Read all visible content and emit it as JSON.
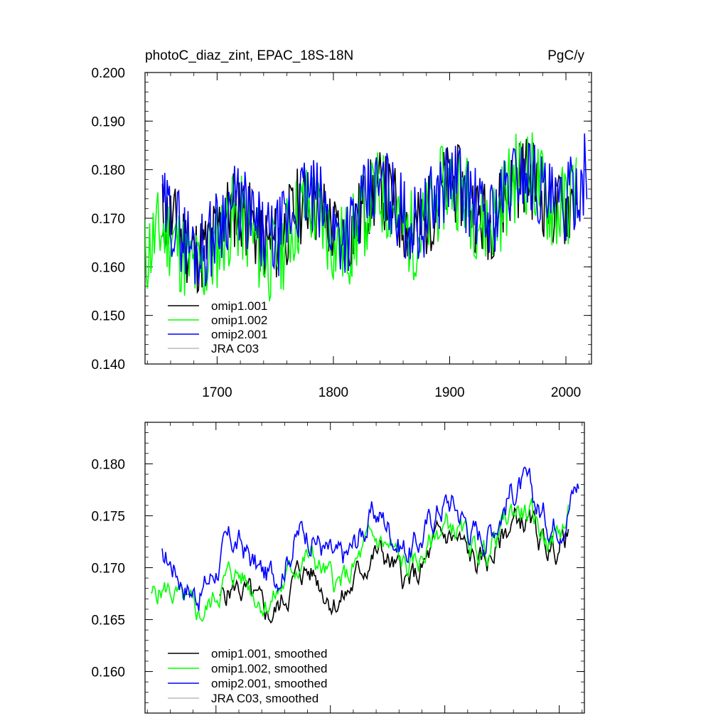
{
  "chart_data": [
    {
      "type": "line",
      "title": "photoC_diaz_zint, EPAC_18S-18N",
      "units": "PgC/y",
      "xlim": [
        1638,
        2022
      ],
      "ylim": [
        0.14,
        0.2
      ],
      "x_ticks": [
        1700,
        1800,
        1900,
        2000
      ],
      "y_ticks": [
        0.14,
        0.15,
        0.16,
        0.17,
        0.18,
        0.19,
        0.2
      ],
      "y_tick_labels": [
        "0.140",
        "0.150",
        "0.160",
        "0.170",
        "0.180",
        "0.190",
        "0.200"
      ],
      "x_tick_labels": [
        "1700",
        "1800",
        "1900",
        "2000"
      ],
      "series": [
        {
          "name": "omip1.001",
          "color": "#000000",
          "x_range": [
            1653,
            2009
          ],
          "start": 0.166,
          "end": 0.176,
          "amp": 0.0085,
          "seed": 11
        },
        {
          "name": "omip1.002",
          "color": "#00ff00",
          "x_range": [
            1638,
            2009
          ],
          "start": 0.162,
          "end": 0.177,
          "amp": 0.0095,
          "seed": 11
        },
        {
          "name": "omip2.001",
          "color": "#0000ff",
          "x_range": [
            1653,
            2018
          ],
          "start": 0.167,
          "end": 0.177,
          "amp": 0.0085,
          "seed": 29
        },
        {
          "name": "JRA C03",
          "color": "#bbbbbb",
          "x_range": [
            1958,
            2018
          ],
          "start": 0.0,
          "end": 0.0,
          "amp": 0,
          "seed": 0,
          "hidden": true
        }
      ]
    },
    {
      "type": "line",
      "title": "",
      "xlim": [
        1638,
        2022
      ],
      "ylim": [
        0.156,
        0.184
      ],
      "x_ticks": [
        1700,
        1800,
        1900,
        2000
      ],
      "y_ticks": [
        0.16,
        0.165,
        0.17,
        0.175,
        0.18
      ],
      "y_tick_labels": [
        "0.160",
        "0.165",
        "0.170",
        "0.175",
        "0.180"
      ],
      "series": [
        {
          "name": "omip1.001, smoothed",
          "color": "#000000",
          "x_range": [
            1703,
            2008
          ],
          "start": 0.166,
          "end": 0.174,
          "amp": 0.0035,
          "seed": 5
        },
        {
          "name": "omip1.002, smoothed",
          "color": "#00ff00",
          "x_range": [
            1643,
            2008
          ],
          "start": 0.166,
          "end": 0.175,
          "amp": 0.0033,
          "seed": 5
        },
        {
          "name": "omip2.001, smoothed",
          "color": "#0000ff",
          "x_range": [
            1653,
            2017
          ],
          "start": 0.169,
          "end": 0.177,
          "amp": 0.0038,
          "seed": 17
        },
        {
          "name": "JRA C03, smoothed",
          "color": "#bbbbbb",
          "x_range": [
            1958,
            2018
          ],
          "start": 0.0,
          "end": 0.0,
          "amp": 0,
          "seed": 0,
          "hidden": true
        }
      ]
    }
  ]
}
